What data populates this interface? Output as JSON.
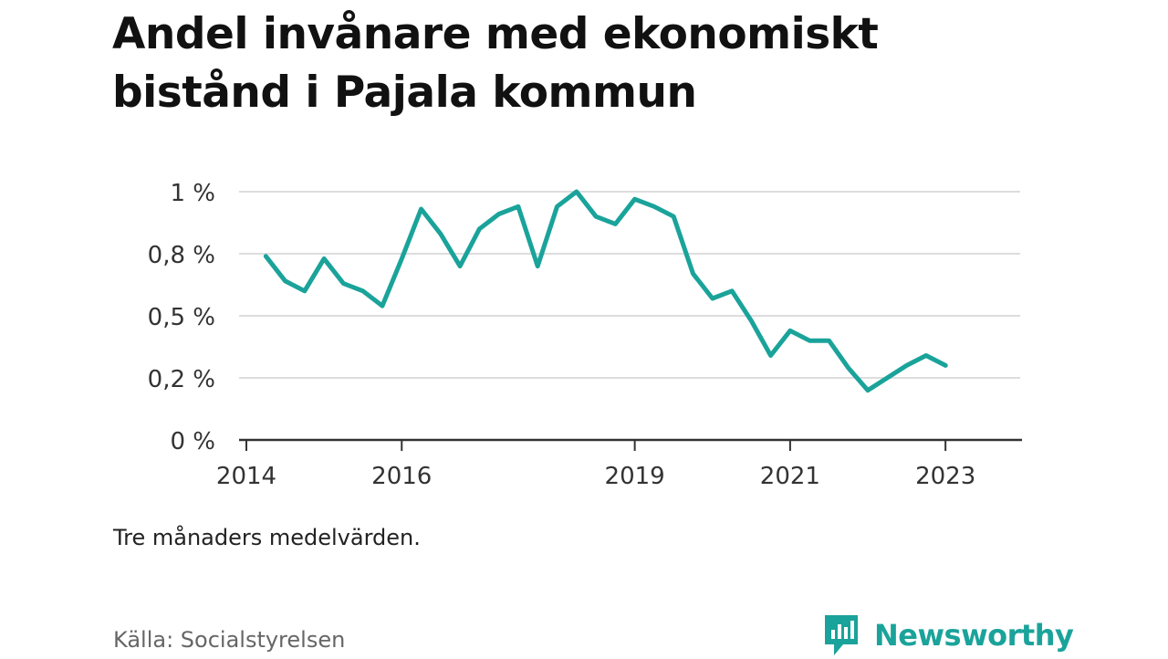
{
  "title": "Andel invånare med ekonomiskt bistånd i Pajala kommun",
  "note": "Tre månaders medelvärden.",
  "source": "Källa: Socialstyrelsen",
  "brand": {
    "name": "Newsworthy",
    "color": "#1aa39a",
    "icon": "newsworthy-logo-icon"
  },
  "chart_data": {
    "type": "line",
    "title": "Andel invånare med ekonomiskt bistånd i Pajala kommun",
    "xlabel": "",
    "ylabel": "",
    "xlim": [
      2014.0,
      2023.75
    ],
    "ylim": [
      0,
      1.0
    ],
    "y_ticks": [
      {
        "value": 0,
        "label": "0 %"
      },
      {
        "value": 0.25,
        "label": "0,2 %"
      },
      {
        "value": 0.5,
        "label": "0,5 %"
      },
      {
        "value": 0.75,
        "label": "0,8 %"
      },
      {
        "value": 1.0,
        "label": "1 %"
      }
    ],
    "x_ticks": [
      {
        "value": 2014,
        "label": "2014"
      },
      {
        "value": 2016,
        "label": "2016"
      },
      {
        "value": 2019,
        "label": "2019"
      },
      {
        "value": 2021,
        "label": "2021"
      },
      {
        "value": 2023,
        "label": "2023"
      }
    ],
    "grid": true,
    "series": [
      {
        "color": "#1aa39a",
        "x": [
          2014.25,
          2014.5,
          2014.75,
          2015.0,
          2015.25,
          2015.5,
          2015.75,
          2016.0,
          2016.25,
          2016.5,
          2016.75,
          2017.0,
          2017.25,
          2017.5,
          2017.75,
          2018.0,
          2018.25,
          2018.5,
          2018.75,
          2019.0,
          2019.25,
          2019.5,
          2019.75,
          2020.0,
          2020.25,
          2020.5,
          2020.75,
          2021.0,
          2021.25,
          2021.5,
          2021.75,
          2022.0,
          2022.25,
          2022.5,
          2022.75,
          2023.0
        ],
        "values": [
          0.74,
          0.64,
          0.6,
          0.73,
          0.63,
          0.6,
          0.54,
          0.73,
          0.93,
          0.83,
          0.7,
          0.85,
          0.91,
          0.94,
          0.7,
          0.94,
          1.0,
          0.9,
          0.87,
          0.97,
          0.94,
          0.9,
          0.67,
          0.57,
          0.6,
          0.48,
          0.34,
          0.44,
          0.4,
          0.4,
          0.29,
          0.2,
          0.25,
          0.3,
          0.34,
          0.3
        ]
      }
    ]
  }
}
